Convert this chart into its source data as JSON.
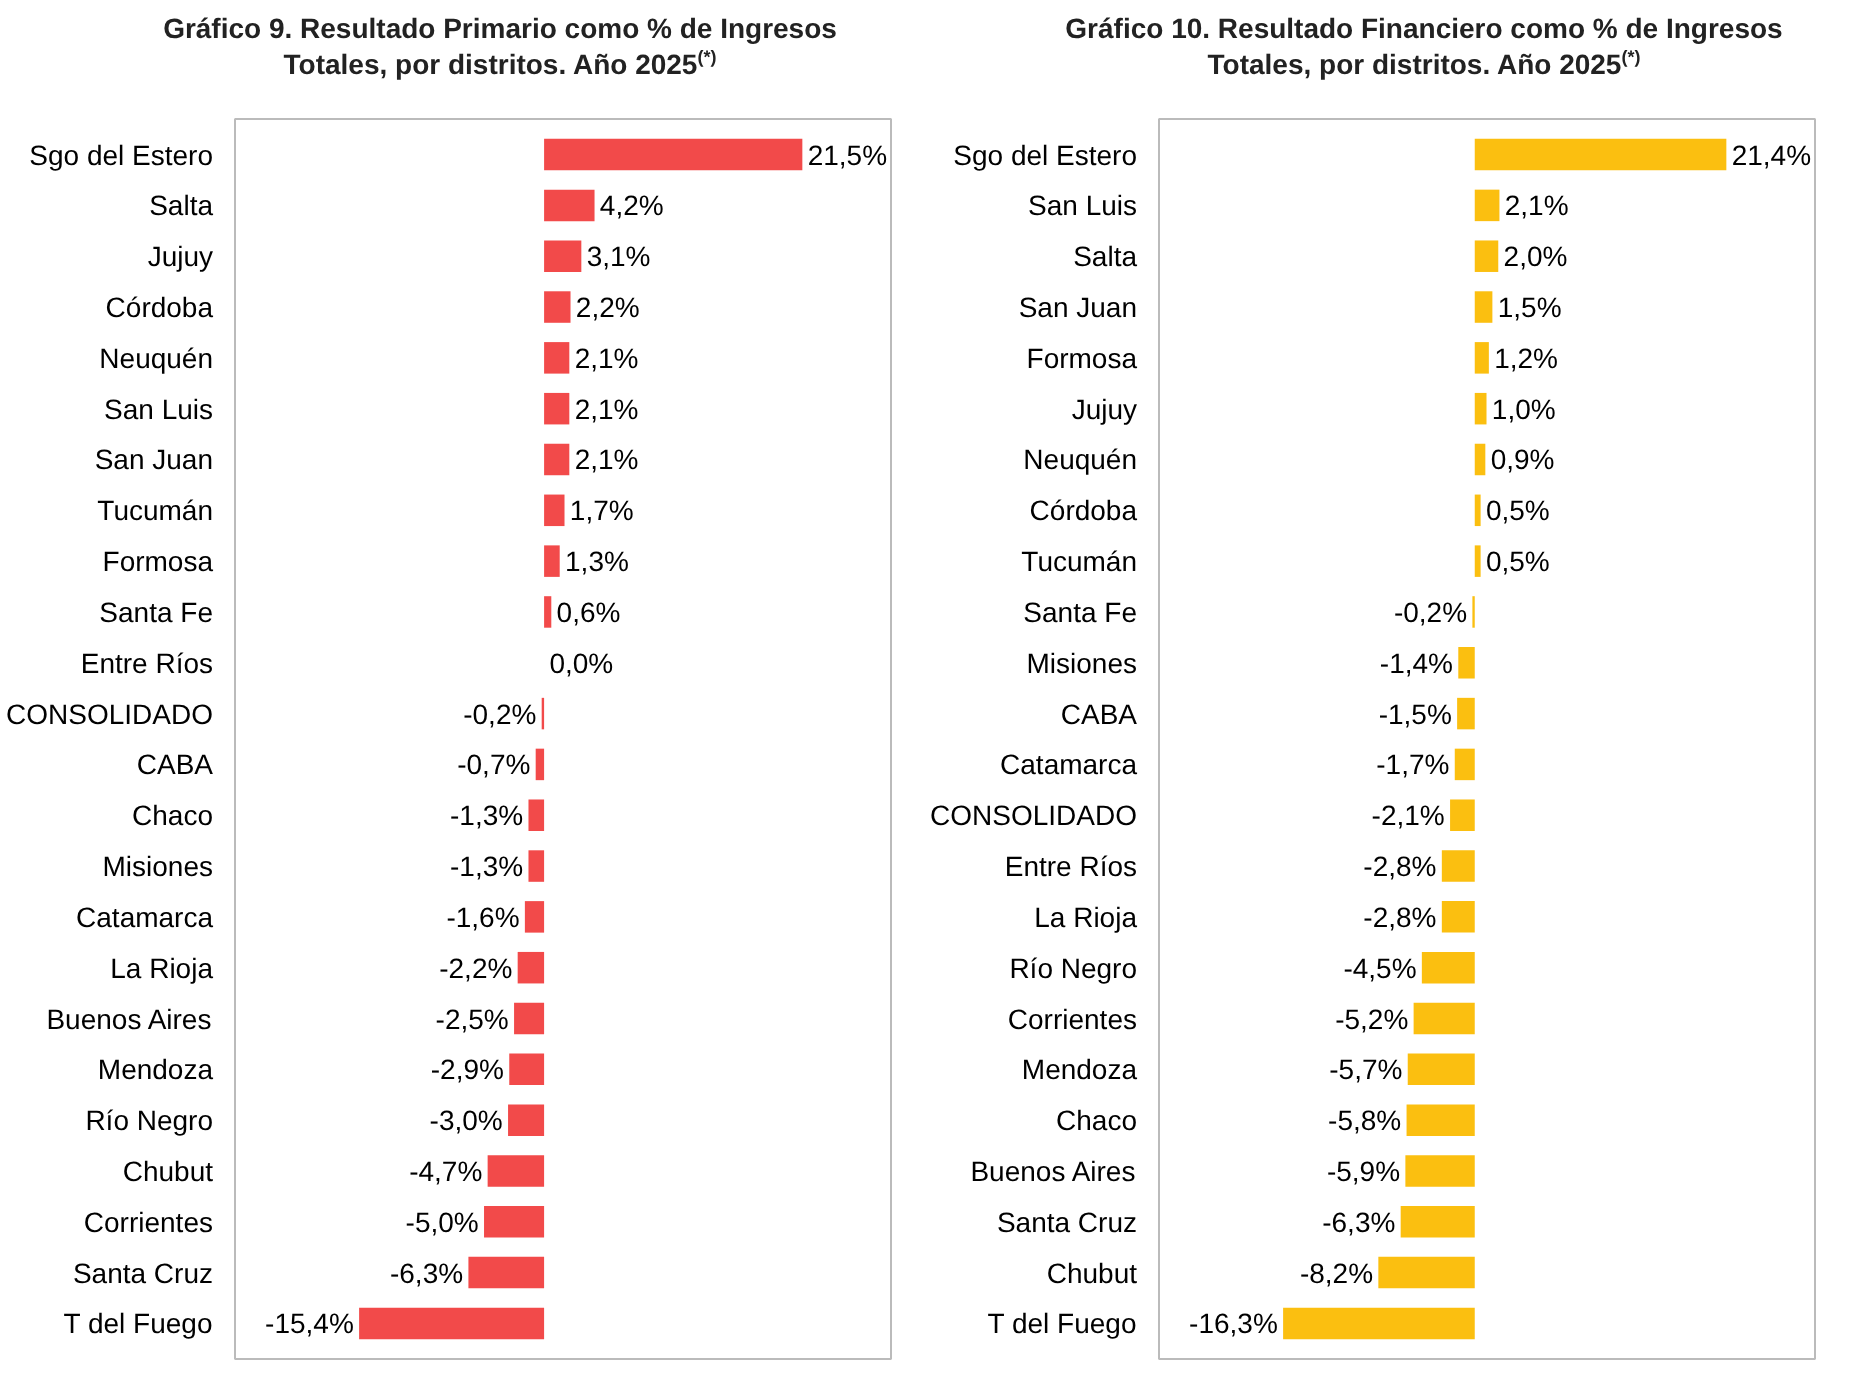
{
  "chart_data": [
    {
      "type": "bar",
      "orientation": "horizontal",
      "title": "Gráfico 9. Resultado Primario como % de Ingresos Totales, por distritos. Año 2025$^{(*)}$",
      "tick_labels": "y",
      "categories": [
        "Sgo del Estero",
        "Salta",
        "Jujuy",
        "Córdoba",
        "Neuquén",
        "San Luis",
        "San Juan",
        "Tucumán",
        "Formosa",
        "Santa Fe",
        "Entre Ríos",
        "CONSOLIDADO",
        "CABA",
        "Chaco",
        "Misiones",
        "Catamarca",
        "La Rioja",
        "Buenos Aires",
        "Mendoza",
        "Río Negro",
        "Chubut",
        "Corrientes",
        "Santa Cruz",
        "T del Fuego"
      ],
      "values": [
        21.5,
        4.2,
        3.1,
        2.2,
        2.1,
        2.1,
        2.1,
        1.7,
        1.3,
        0.6,
        0.0,
        -0.2,
        -0.7,
        -1.3,
        -1.3,
        -1.6,
        -2.2,
        -2.5,
        -2.9,
        -3.0,
        -4.7,
        -5.0,
        -6.3,
        -15.4
      ],
      "value_labels": [
        "21,5%",
        "4,2%",
        "3,1%",
        "2,2%",
        "2,1%",
        "2,1%",
        "2,1%",
        "1,7%",
        "1,3%",
        "0,6%",
        "0,0%",
        "-0,2%",
        "-0,7%",
        "-1,3%",
        "-1,3%",
        "-1,6%",
        "-2,2%",
        "-2,5%",
        "-2,9%",
        "-3,0%",
        "-4,7%",
        "-5,0%",
        "-6,3%",
        "-15,4%"
      ],
      "color": "#f24a4a"
    },
    {
      "type": "bar",
      "orientation": "horizontal",
      "title": "Gráfico 10. Resultado Financiero como % de Ingresos Totales, por distritos. Año 2025$^{(*)}$",
      "tick_labels": "y",
      "categories": [
        "Sgo del Estero",
        "San Luis",
        "Salta",
        "San Juan",
        "Formosa",
        "Jujuy",
        "Neuquén",
        "Córdoba",
        "Tucumán",
        "Santa Fe",
        "Misiones",
        "CABA",
        "Catamarca",
        "CONSOLIDADO",
        "Entre Ríos",
        "La Rioja",
        "Río Negro",
        "Corrientes",
        "Mendoza",
        "Chaco",
        "Buenos Aires",
        "Santa Cruz",
        "Chubut",
        "T del Fuego"
      ],
      "values": [
        21.4,
        2.1,
        2.0,
        1.5,
        1.2,
        1.0,
        0.9,
        0.5,
        0.5,
        -0.2,
        -1.4,
        -1.5,
        -1.7,
        -2.1,
        -2.8,
        -2.8,
        -4.5,
        -5.2,
        -5.7,
        -5.8,
        -5.9,
        -6.3,
        -8.2,
        -16.3
      ],
      "value_labels": [
        "21,4%",
        "2,1%",
        "2,0%",
        "1,5%",
        "1,2%",
        "1,0%",
        "0,9%",
        "0,5%",
        "0,5%",
        "-0,2%",
        "-1,4%",
        "-1,5%",
        "-1,7%",
        "-2,1%",
        "-2,8%",
        "-2,8%",
        "-4,5%",
        "-5,2%",
        "-5,7%",
        "-5,8%",
        "-5,9%",
        "-6,3%",
        "-8,2%",
        "-16,3%"
      ],
      "color": "#fbbf10"
    }
  ]
}
